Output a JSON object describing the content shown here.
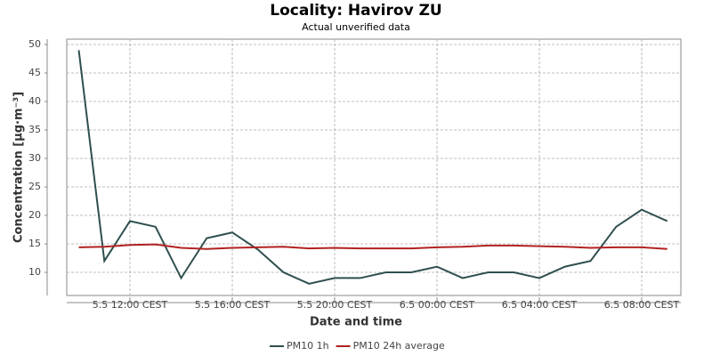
{
  "chart_data": {
    "type": "line",
    "title": "Locality: Havirov ZU",
    "subtitle": "Actual unverified data",
    "x_label": "Date and time",
    "y_label": "Concentration [µg·m⁻³]",
    "x": [
      10,
      11,
      12,
      13,
      14,
      15,
      16,
      17,
      18,
      19,
      20,
      21,
      22,
      23,
      24,
      25,
      26,
      27,
      28,
      29,
      30,
      31,
      32,
      33
    ],
    "xlim": [
      9.53,
      33.53
    ],
    "xticks": [
      {
        "value": 12,
        "label": "5.5 12:00 CEST"
      },
      {
        "value": 16,
        "label": "5.5 16:00 CEST"
      },
      {
        "value": 20,
        "label": "5.5 20:00 CEST"
      },
      {
        "value": 24,
        "label": "6.5 00:00 CEST"
      },
      {
        "value": 28,
        "label": "6.5 04:00 CEST"
      },
      {
        "value": 32,
        "label": "6.5 08:00 CEST"
      }
    ],
    "ylim": [
      5.94,
      50.94
    ],
    "yticks": [
      10,
      15,
      20,
      25,
      30,
      35,
      40,
      45,
      50
    ],
    "grid": true,
    "legend": "bottom",
    "series": [
      {
        "name": "PM10 1h",
        "color": "#2f4f4f",
        "values": [
          49,
          12,
          19,
          18,
          9,
          16,
          17,
          14,
          10,
          8,
          9,
          9,
          10,
          10,
          11,
          9,
          10,
          10,
          9,
          11,
          12,
          18,
          21,
          19
        ]
      },
      {
        "name": "PM10 24h average",
        "color": "#b22222",
        "values": [
          14.4,
          14.5,
          14.8,
          14.9,
          14.3,
          14.1,
          14.3,
          14.4,
          14.5,
          14.2,
          14.3,
          14.2,
          14.2,
          14.2,
          14.4,
          14.5,
          14.7,
          14.7,
          14.6,
          14.5,
          14.3,
          14.4,
          14.4,
          14.1
        ]
      }
    ]
  }
}
